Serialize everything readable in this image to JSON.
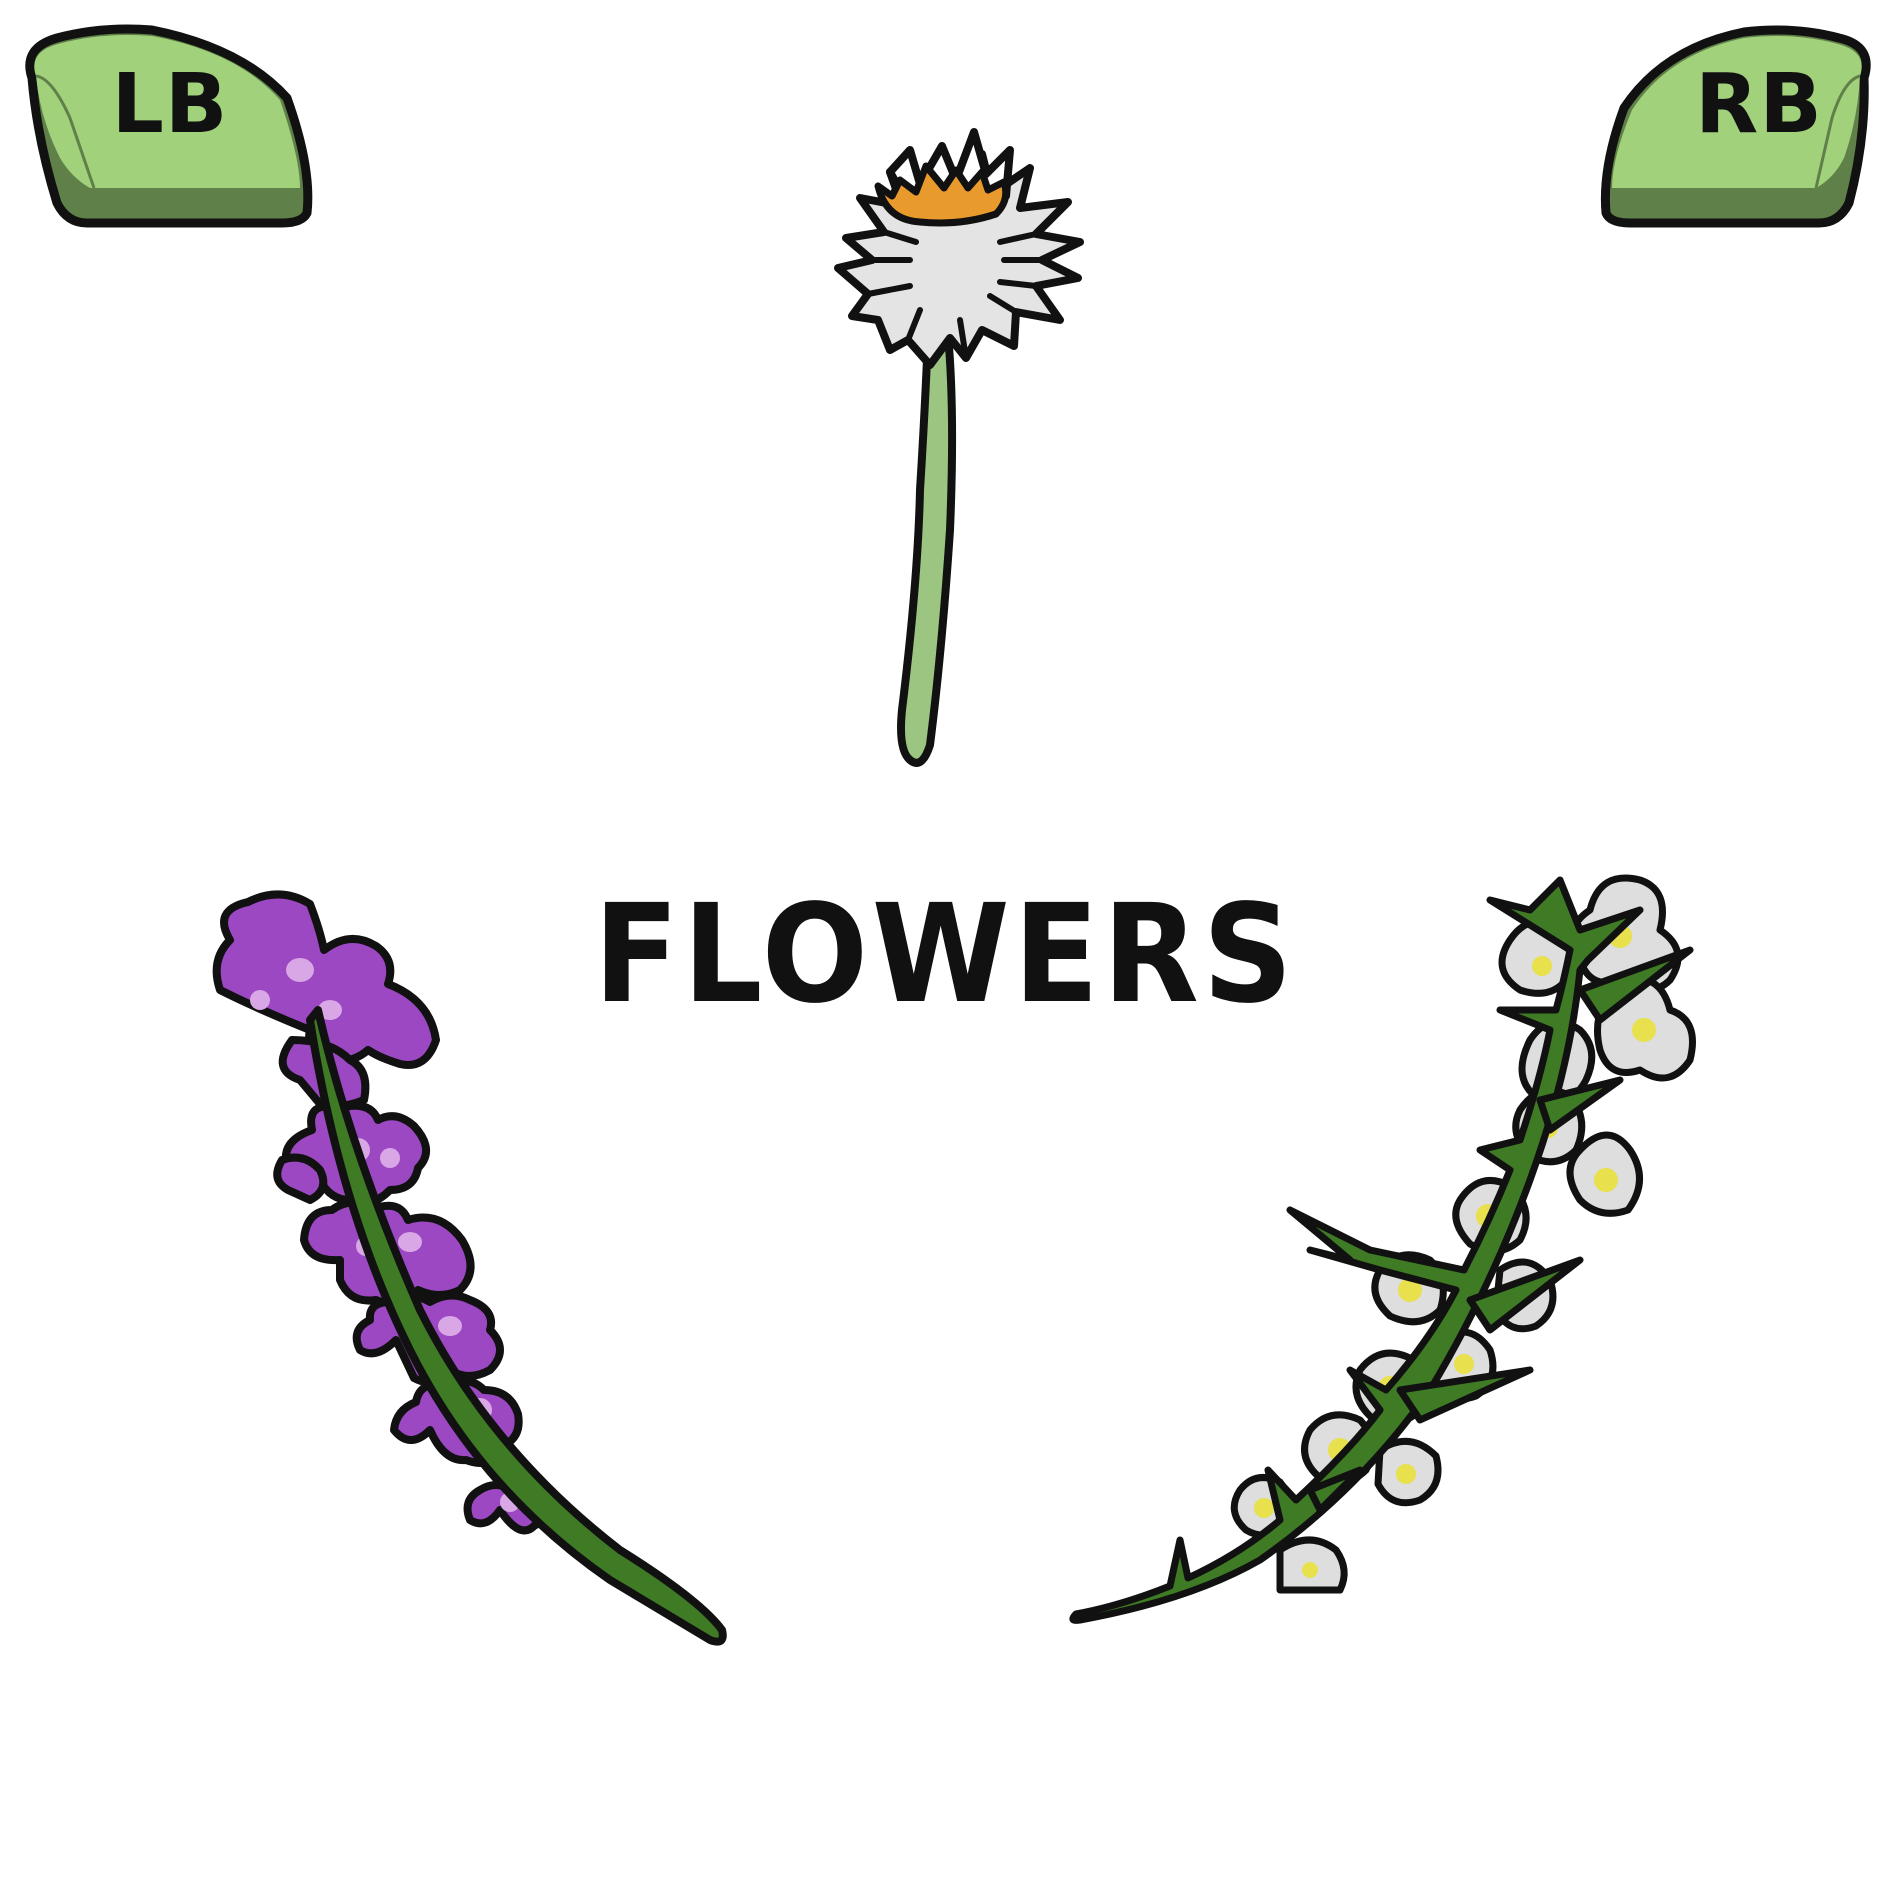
{
  "header": {
    "left_bumper_label": "LB",
    "right_bumper_label": "RB"
  },
  "main": {
    "title": "FLOWERS"
  },
  "items": [
    {
      "name": "daisy",
      "icon": "daisy-icon"
    },
    {
      "name": "lavender",
      "icon": "lavender-icon"
    },
    {
      "name": "white-blossom-branch",
      "icon": "white-blossom-icon"
    }
  ],
  "colors": {
    "button_fill": "#a2d17c",
    "button_shadow": "#5f8048",
    "outline": "#111111",
    "daisy_petal": "#e4e4e4",
    "daisy_center": "#e99a2c",
    "daisy_stem": "#9bc581",
    "lavender_petal": "#9b48c2",
    "lavender_spot": "#d9a6e6",
    "stem_dark": "#3f7a25",
    "blossom_petal": "#dedede",
    "blossom_center": "#e8e04c"
  }
}
